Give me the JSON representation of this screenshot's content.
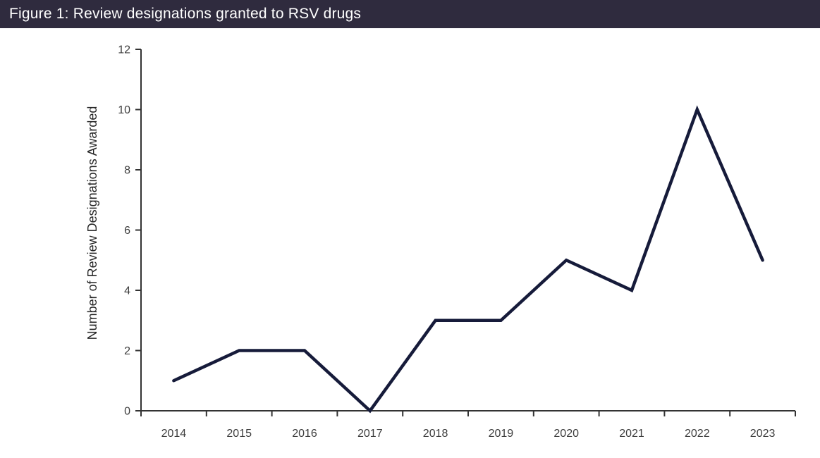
{
  "header": {
    "title": "Figure 1: Review designations granted to RSV drugs"
  },
  "colors": {
    "title_bar_bg": "#2f2b3e",
    "title_text": "#ffffff",
    "background": "#ffffff",
    "line": "#161b3a",
    "axis": "#333333",
    "tick_text": "#3d3d3d",
    "axis_title_text": "#262626"
  },
  "chart_data": {
    "type": "line",
    "categories": [
      "2014",
      "2015",
      "2016",
      "2017",
      "2018",
      "2019",
      "2020",
      "2021",
      "2022",
      "2023"
    ],
    "values": [
      1,
      2,
      2,
      0,
      3,
      3,
      5,
      4,
      10,
      5
    ],
    "title": "Figure 1: Review designations granted to RSV drugs",
    "xlabel": "",
    "ylabel": "Number of Review Designations Awarded",
    "ylim": [
      0,
      12
    ],
    "yticks": [
      0,
      2,
      4,
      6,
      8,
      10,
      12
    ],
    "grid": false,
    "legend": false,
    "markers": false
  }
}
